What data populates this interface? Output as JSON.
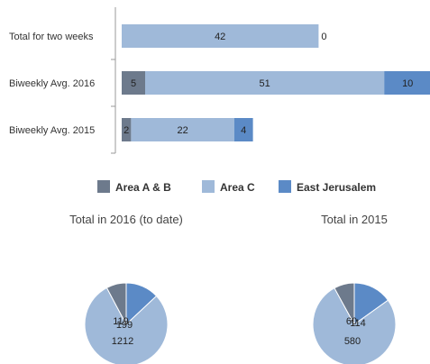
{
  "colors": {
    "area_ab": "#6d7a8c",
    "area_c": "#9fb9d9",
    "east_jerusalem": "#5b8ac6"
  },
  "chart_data": [
    {
      "type": "bar",
      "stacked": true,
      "orientation": "horizontal",
      "categories": [
        "Total for two weeks",
        "Biweekly Avg. 2016",
        "Biweekly Avg. 2015"
      ],
      "series": [
        {
          "name": "Area A & B",
          "values": [
            0,
            5,
            2
          ],
          "color": "#6d7a8c"
        },
        {
          "name": "Area C",
          "values": [
            42,
            51,
            22
          ],
          "color": "#9fb9d9"
        },
        {
          "name": "East Jerusalem",
          "values": [
            0,
            10,
            4
          ],
          "color": "#5b8ac6"
        }
      ],
      "legend": {
        "position": "bottom",
        "entries": [
          "Area A & B",
          "Area C",
          "East Jerusalem"
        ]
      },
      "grid": false
    },
    {
      "type": "pie",
      "title": "Total in 2016 (to date)",
      "labels": [
        "Area A & B",
        "Area C",
        "East Jerusalem"
      ],
      "values": [
        119,
        1212,
        199
      ],
      "value_labels": [
        "119",
        "1212",
        "199"
      ],
      "colors": [
        "#6d7a8c",
        "#9fb9d9",
        "#5b8ac6"
      ]
    },
    {
      "type": "pie",
      "title": "Total in 2015",
      "labels": [
        "Area A & B",
        "Area C",
        "East Jerusalem"
      ],
      "values": [
        60,
        580,
        114
      ],
      "value_labels": [
        "60",
        "580",
        "114"
      ],
      "colors": [
        "#6d7a8c",
        "#9fb9d9",
        "#5b8ac6"
      ]
    }
  ]
}
